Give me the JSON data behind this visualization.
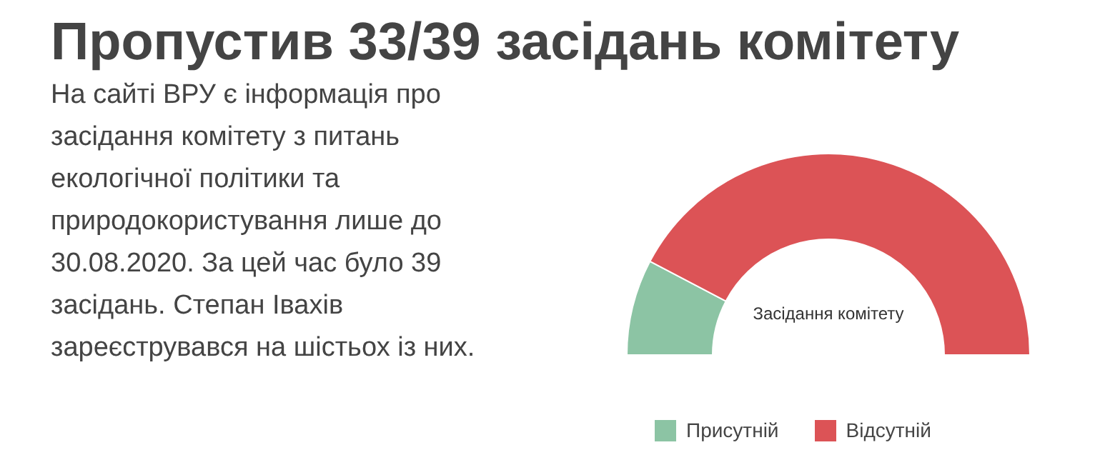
{
  "chart_data": {
    "type": "donut",
    "title": "Пропустив 33/39 засідань комітету",
    "annotations": [
      "На сайті ВРУ є інформація про засідання комітету з питань екологічної політики та природокористування лише до 30.08.2020. За цей час було 39 засідань. Степан Івахів зареєструвався на шістьох із них.",
      "Засідання комітету"
    ],
    "categories": [
      "Присутній",
      "Відсутній"
    ],
    "values": [
      15.4,
      84.6
    ],
    "colors": [
      "#8cc4a4",
      "#dc5356"
    ],
    "legend": "bottom"
  }
}
